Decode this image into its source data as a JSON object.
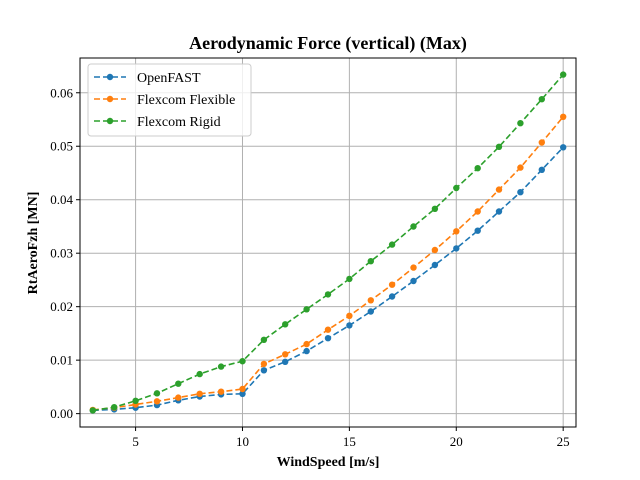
{
  "chart_data": {
    "type": "line",
    "title": "Aerodynamic Force (vertical) (Max)",
    "xlabel": "WindSpeed [m/s]",
    "ylabel": "RtAeroFzh [MN]",
    "xlim": [
      2.4,
      25.6
    ],
    "ylim": [
      -0.0025,
      0.0665
    ],
    "x_ticks": [
      5,
      10,
      15,
      20,
      25
    ],
    "y_ticks": [
      0.0,
      0.01,
      0.02,
      0.03,
      0.04,
      0.05,
      0.06
    ],
    "x_tick_labels": [
      "5",
      "10",
      "15",
      "20",
      "25"
    ],
    "y_tick_labels": [
      "0.00",
      "0.01",
      "0.02",
      "0.03",
      "0.04",
      "0.05",
      "0.06"
    ],
    "grid": true,
    "legend_position": "top-left",
    "x": [
      3,
      4,
      5,
      6,
      7,
      8,
      9,
      10,
      11,
      12,
      13,
      14,
      15,
      16,
      17,
      18,
      19,
      20,
      21,
      22,
      23,
      24,
      25
    ],
    "series": [
      {
        "name": "OpenFAST",
        "color": "#1f77b4",
        "values": [
          0.0006,
          0.0008,
          0.0011,
          0.0016,
          0.0025,
          0.0032,
          0.0036,
          0.0037,
          0.0081,
          0.0097,
          0.0117,
          0.0141,
          0.0165,
          0.0191,
          0.0219,
          0.0248,
          0.0278,
          0.0309,
          0.0342,
          0.0378,
          0.0414,
          0.0456,
          0.0498
        ]
      },
      {
        "name": "Flexcom Flexible",
        "color": "#ff7f0e",
        "values": [
          0.0007,
          0.0011,
          0.0017,
          0.0023,
          0.003,
          0.0037,
          0.0041,
          0.0046,
          0.0093,
          0.0111,
          0.013,
          0.0157,
          0.0183,
          0.0212,
          0.0241,
          0.0273,
          0.0306,
          0.0341,
          0.0378,
          0.0419,
          0.046,
          0.0507,
          0.0555
        ]
      },
      {
        "name": "Flexcom Rigid",
        "color": "#2ca02c",
        "values": [
          0.0006,
          0.0012,
          0.0024,
          0.0038,
          0.0056,
          0.0074,
          0.0088,
          0.0098,
          0.0138,
          0.0167,
          0.0195,
          0.0223,
          0.0252,
          0.0285,
          0.0316,
          0.035,
          0.0383,
          0.0422,
          0.0459,
          0.0499,
          0.0543,
          0.0588,
          0.0634
        ]
      }
    ]
  }
}
